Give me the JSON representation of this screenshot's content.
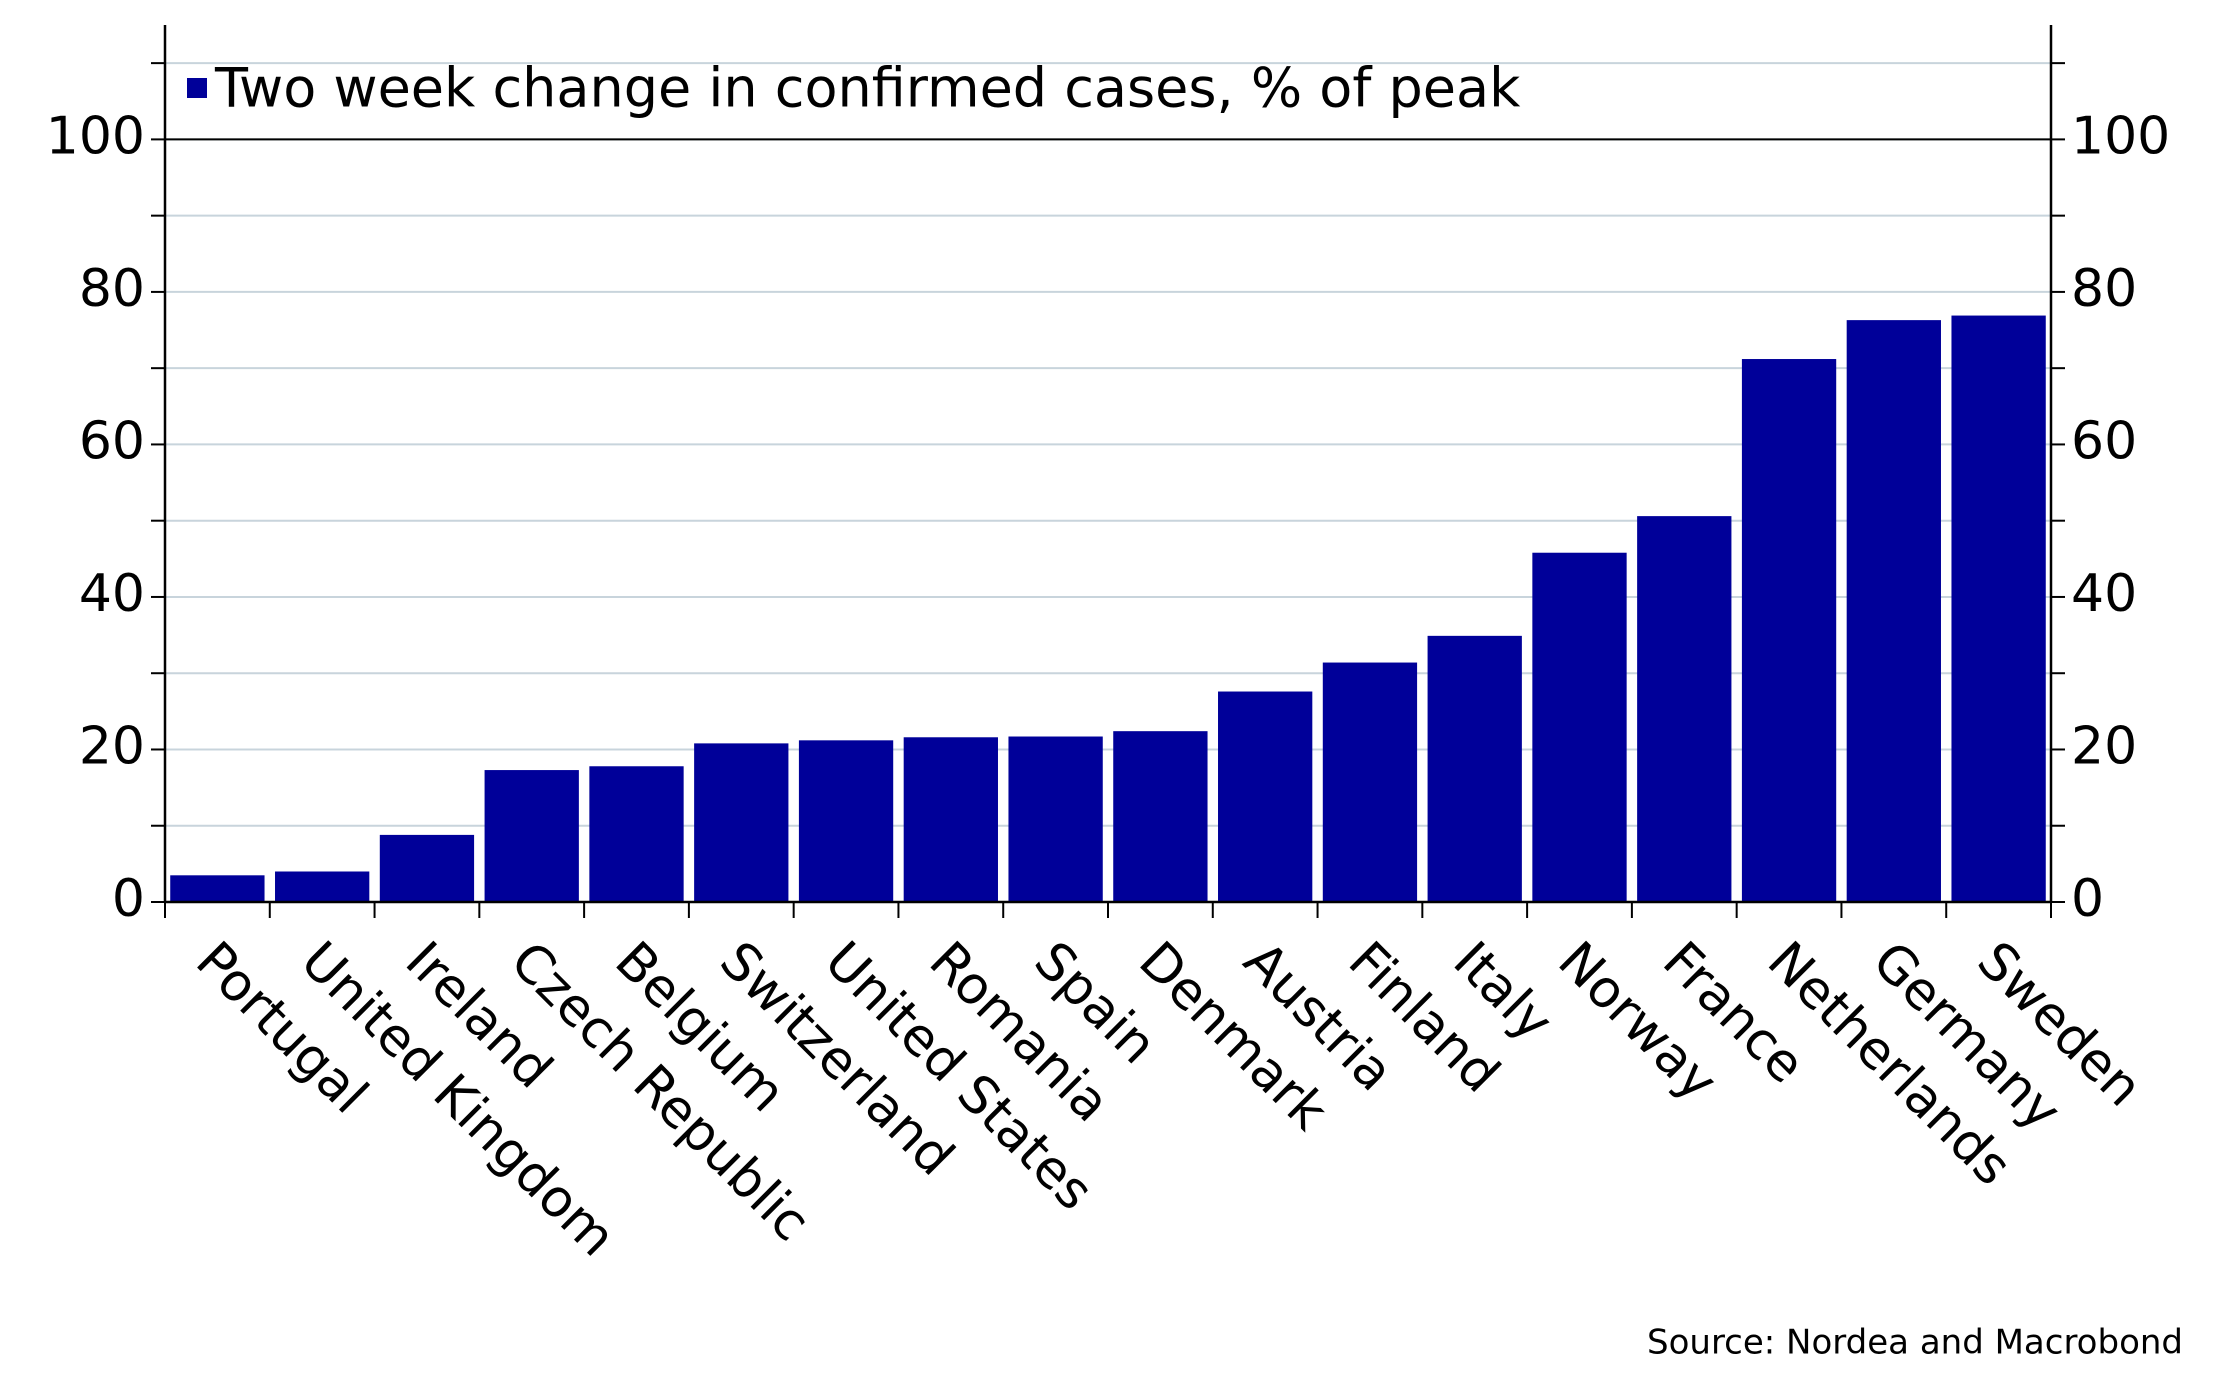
{
  "chart_data": {
    "type": "bar",
    "legend_label": "Two week change in confirmed cases, % of peak",
    "source": "Source: Nordea and Macrobond",
    "categories": [
      "Portugal",
      "United Kingdom",
      "Ireland",
      "Czech Republic",
      "Belgium",
      "Switzerland",
      "United States",
      "Romania",
      "Spain",
      "Denmark",
      "Austria",
      "Finland",
      "Italy",
      "Norway",
      "France",
      "Netherlands",
      "Germany",
      "Sweden"
    ],
    "values": [
      3.5,
      4,
      8.8,
      17.3,
      17.8,
      20.8,
      21.2,
      21.6,
      21.7,
      22.4,
      27.6,
      31.4,
      34.9,
      45.8,
      50.6,
      71.2,
      76.3,
      76.9
    ],
    "color": "#000099",
    "ylim": [
      0,
      115
    ],
    "yticks": [
      0,
      20,
      40,
      60,
      80,
      100
    ],
    "minor_yticks": [
      10,
      30,
      50,
      70,
      90,
      110
    ],
    "grid": true,
    "legend_position": "top-left"
  }
}
